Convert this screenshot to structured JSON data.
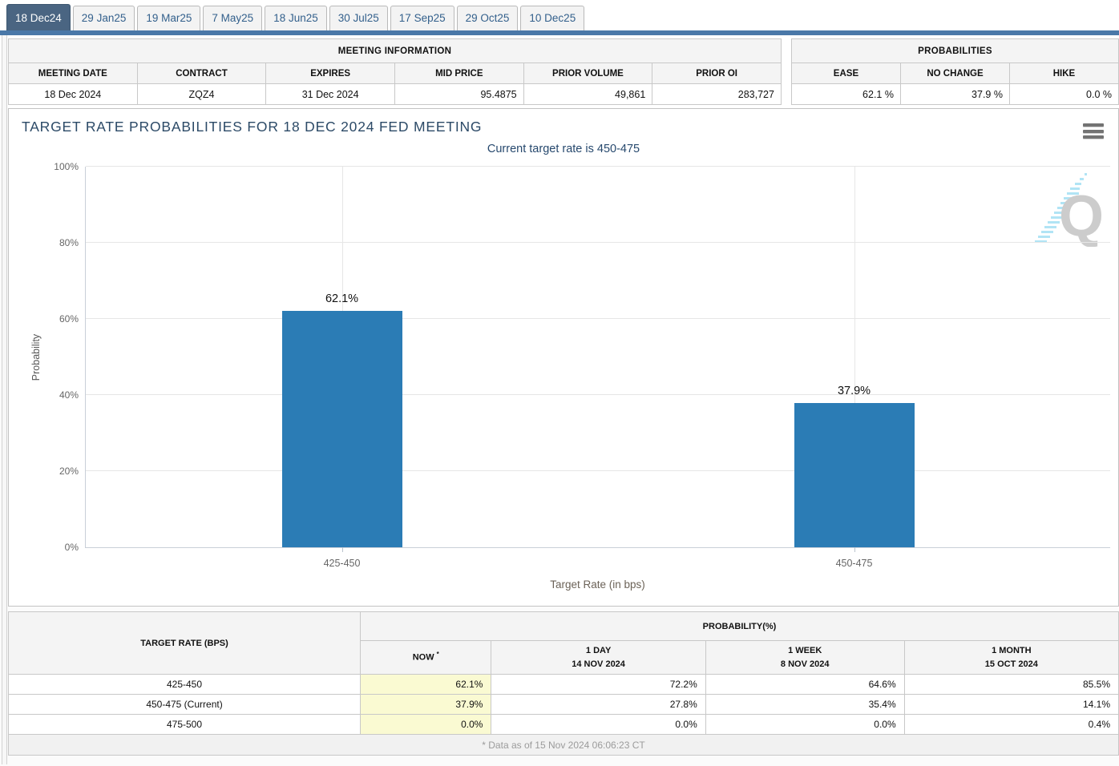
{
  "tabs": {
    "items": [
      "18 Dec24",
      "29 Jan25",
      "19 Mar25",
      "7 May25",
      "18 Jun25",
      "30 Jul25",
      "17 Sep25",
      "29 Oct25",
      "10 Dec25"
    ],
    "active_index": 0
  },
  "meeting_information": {
    "title": "MEETING INFORMATION",
    "headers": [
      "MEETING DATE",
      "CONTRACT",
      "EXPIRES",
      "MID PRICE",
      "PRIOR VOLUME",
      "PRIOR OI"
    ],
    "values": [
      "18 Dec 2024",
      "ZQZ4",
      "31 Dec 2024",
      "95.4875",
      "49,861",
      "283,727"
    ],
    "value_align": [
      "c",
      "c",
      "c",
      "r",
      "r",
      "r"
    ],
    "col_widths": [
      "20%",
      "15%",
      "18%",
      "13.6%",
      "21.7%",
      "11.7%"
    ]
  },
  "probabilities_summary": {
    "title": "PROBABILITIES",
    "headers": [
      "EASE",
      "NO CHANGE",
      "HIKE"
    ],
    "values": [
      "62.1 %",
      "37.9 %",
      "0.0 %"
    ],
    "col_widths": [
      "30%",
      "45.5%",
      "24.5%"
    ]
  },
  "chart_data": {
    "type": "bar",
    "title": "TARGET RATE PROBABILITIES FOR 18 DEC 2024 FED MEETING",
    "subtitle": "Current target rate is 450-475",
    "categories": [
      "425-450",
      "450-475"
    ],
    "values": [
      62.1,
      37.9
    ],
    "data_labels": [
      "62.1%",
      "37.9%"
    ],
    "bar_color": "#2b7cb5",
    "xlabel": "Target Rate (in bps)",
    "ylabel": "Probability",
    "ylim": [
      0,
      100
    ],
    "yticks": [
      0,
      20,
      40,
      60,
      80,
      100
    ],
    "ytick_suffix": "%",
    "grid": true,
    "legend": false,
    "watermark": "Q"
  },
  "bottom_table": {
    "col1_header": "TARGET RATE (BPS)",
    "group_header": "PROBABILITY(%)",
    "sub_headers": [
      {
        "label": "NOW",
        "sup": "*",
        "date": ""
      },
      {
        "label": "1 DAY",
        "sup": "",
        "date": "14 NOV 2024"
      },
      {
        "label": "1 WEEK",
        "sup": "",
        "date": "8 NOV 2024"
      },
      {
        "label": "1 MONTH",
        "sup": "",
        "date": "15 OCT 2024"
      }
    ],
    "col_widths": [
      "31.7%",
      "11.8%",
      "19.3%",
      "17.9%",
      "19.3%"
    ],
    "rows": [
      {
        "rate": "425-450",
        "now": "62.1%",
        "day": "72.2%",
        "week": "64.6%",
        "month": "85.5%"
      },
      {
        "rate": "450-475 (Current)",
        "now": "37.9%",
        "day": "27.8%",
        "week": "35.4%",
        "month": "14.1%"
      },
      {
        "rate": "475-500",
        "now": "0.0%",
        "day": "0.0%",
        "week": "0.0%",
        "month": "0.4%"
      }
    ],
    "footnote": "* Data as of 15 Nov 2024 06:06:23 CT"
  },
  "colors": {
    "bar": "#2b7cb5",
    "active_tab": "#4a6582",
    "tab_text": "#33608c",
    "strip": "#4a78a8",
    "now_column_bg": "#fafad2",
    "title_text": "#2c4a67"
  }
}
